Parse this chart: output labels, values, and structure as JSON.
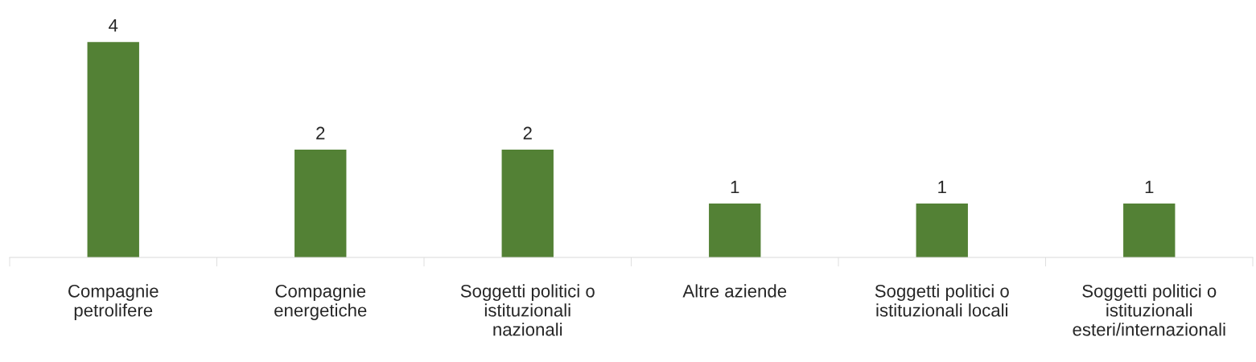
{
  "chart_data": {
    "type": "bar",
    "categories": [
      "Compagnie petrolifere",
      "Compagnie energetiche",
      "Soggetti politici o istituzionali nazionali",
      "Altre aziende",
      "Soggetti politici o istituzionali locali",
      "Soggetti politici o istituzionali esteri/internazionali"
    ],
    "values": [
      4,
      2,
      2,
      1,
      1,
      1
    ],
    "color": "#538135",
    "data_labels": true,
    "grid": false,
    "legend": false
  }
}
